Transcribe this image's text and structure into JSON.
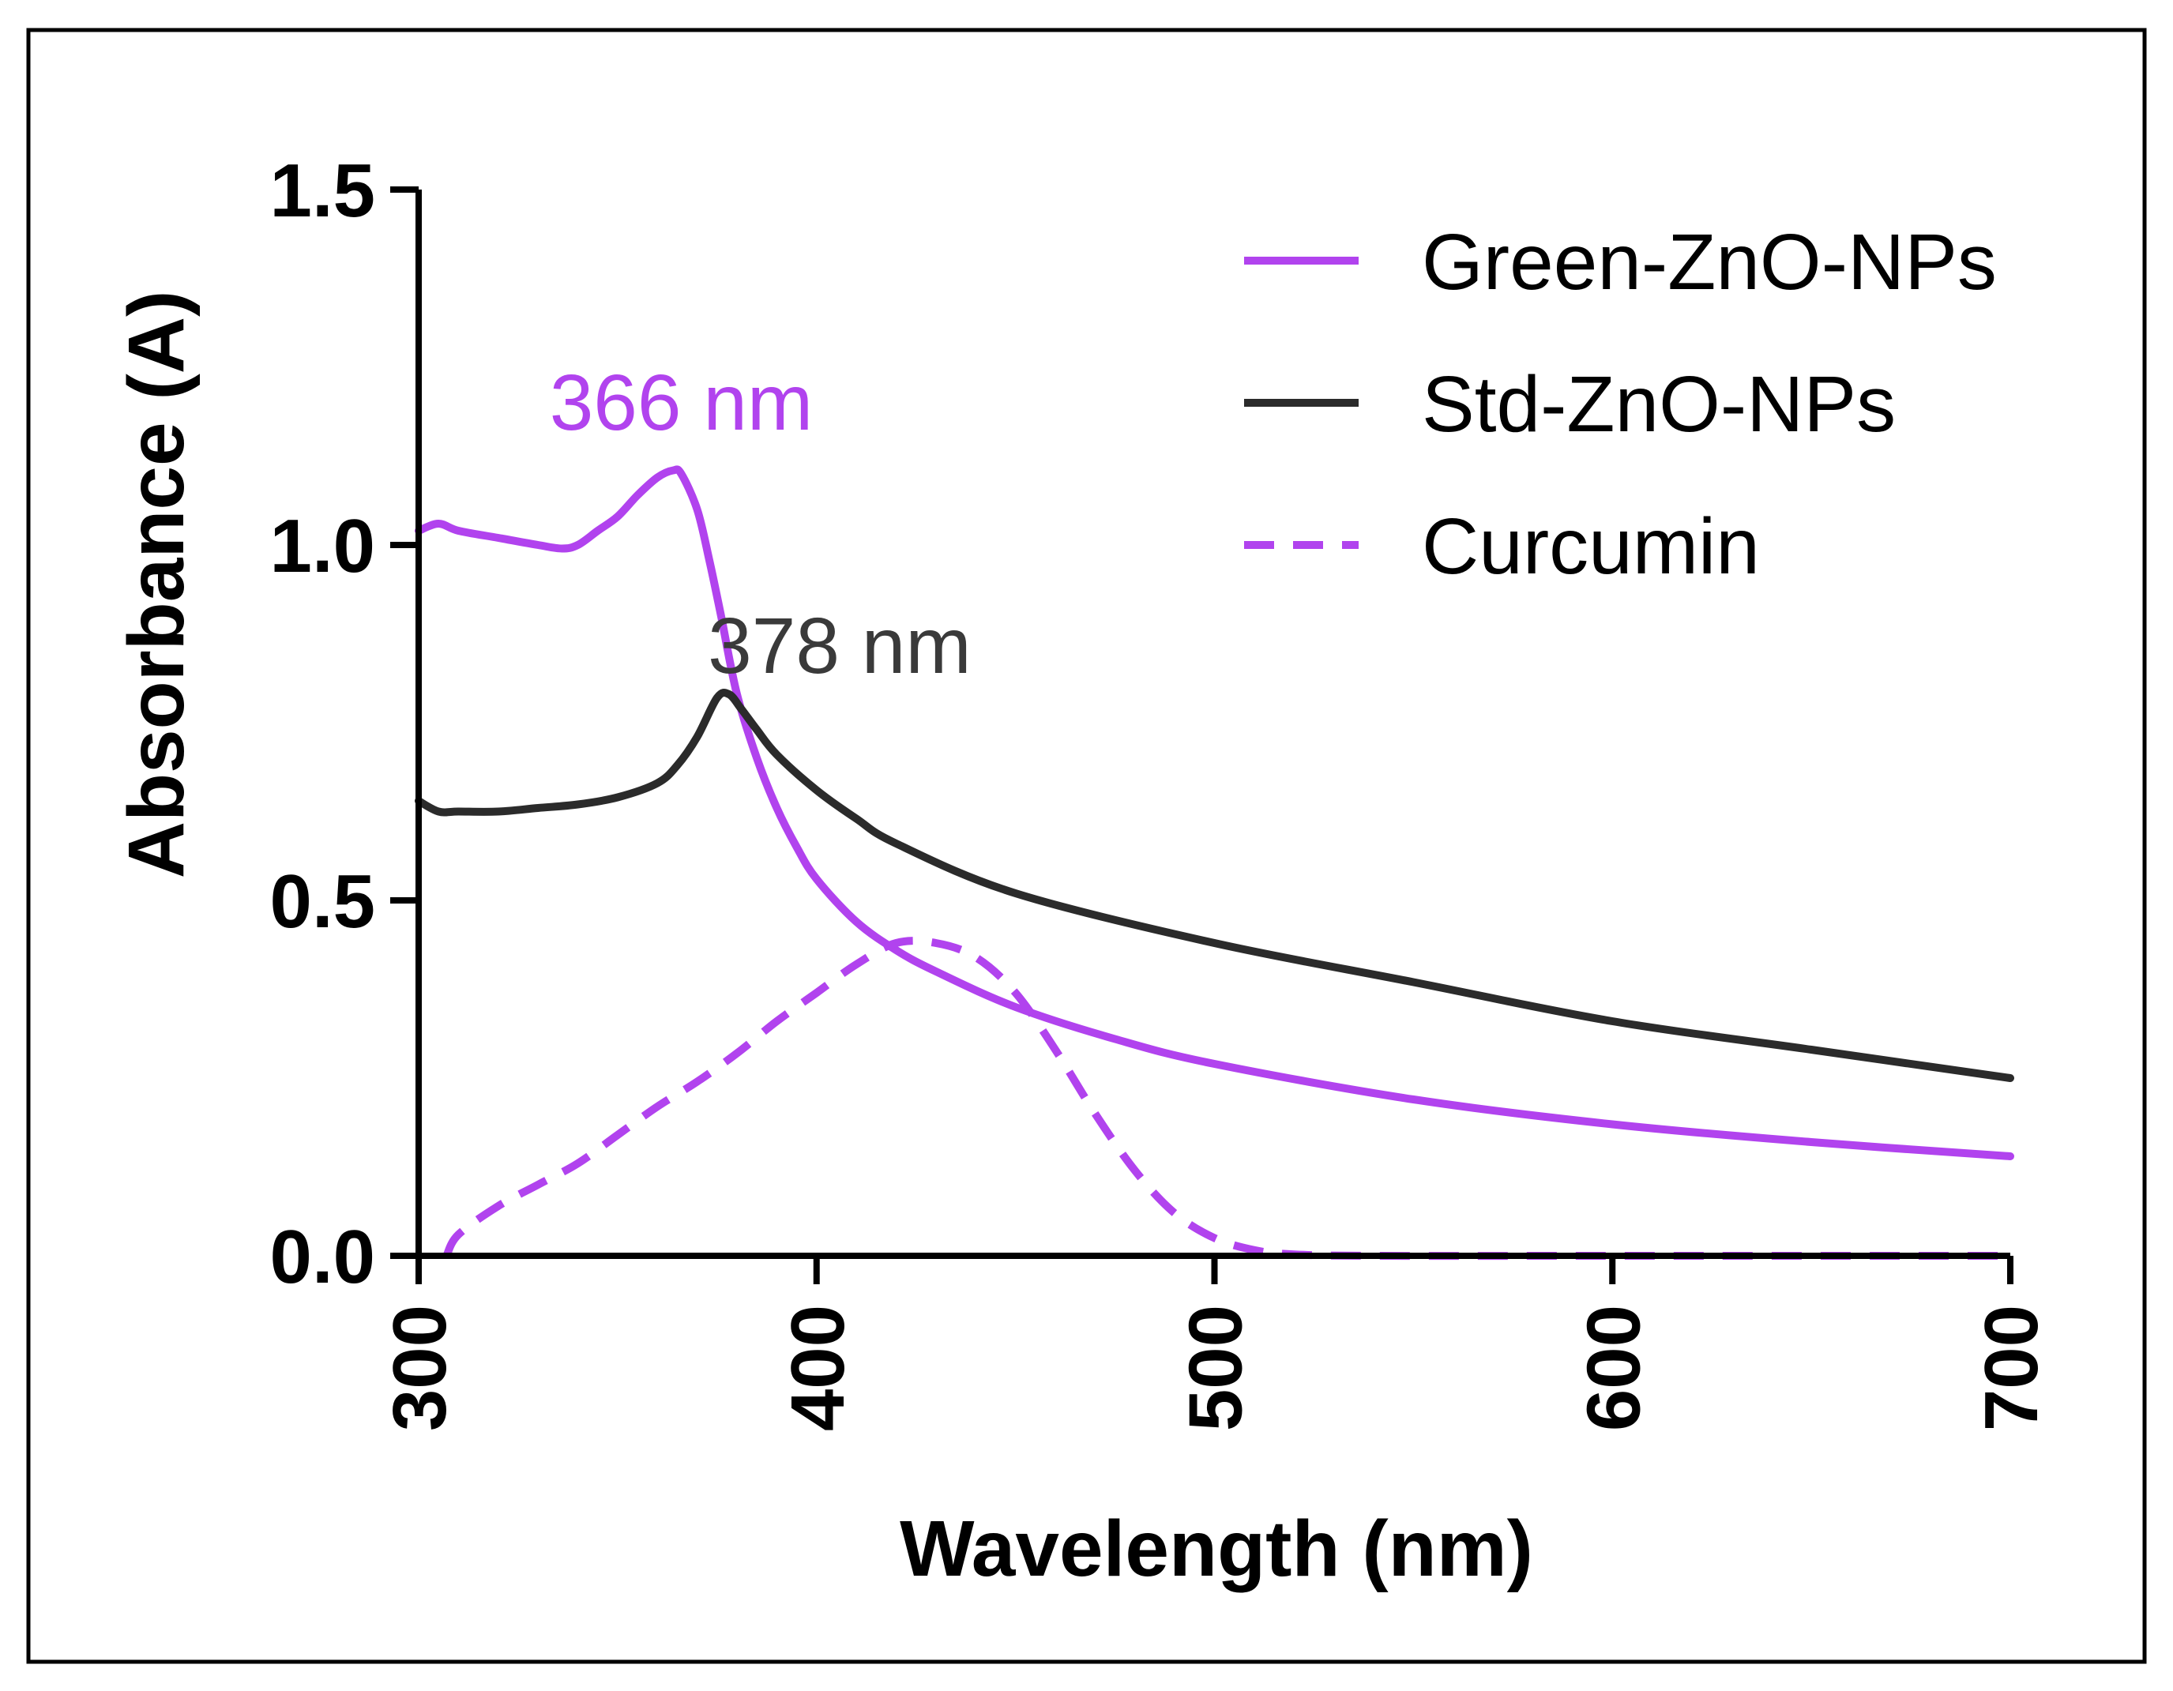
{
  "chart_data": {
    "type": "line",
    "xlabel": "Wavelength (nm)",
    "ylabel": "Absorbance (A)",
    "xlim": [
      300,
      700
    ],
    "ylim": [
      0,
      1.5
    ],
    "xticks": [
      "300",
      "400",
      "500",
      "600",
      "700"
    ],
    "yticks": [
      "0.0",
      "0.5",
      "1.0",
      "1.5"
    ],
    "grid": false,
    "legend_position": "top-right",
    "series": [
      {
        "name": "Green-ZnO-NPs",
        "color": "#b143ee",
        "dash": false,
        "points": [
          [
            300,
            1.02
          ],
          [
            305,
            1.03
          ],
          [
            310,
            1.02
          ],
          [
            320,
            1.01
          ],
          [
            330,
            1.0
          ],
          [
            336,
            0.995
          ],
          [
            340,
            1.0
          ],
          [
            345,
            1.02
          ],
          [
            350,
            1.04
          ],
          [
            355,
            1.07
          ],
          [
            360,
            1.095
          ],
          [
            364,
            1.105
          ],
          [
            366,
            1.1
          ],
          [
            370,
            1.05
          ],
          [
            373,
            0.98
          ],
          [
            376,
            0.9
          ],
          [
            380,
            0.79
          ],
          [
            385,
            0.7
          ],
          [
            390,
            0.63
          ],
          [
            395,
            0.575
          ],
          [
            400,
            0.53
          ],
          [
            410,
            0.47
          ],
          [
            420,
            0.43
          ],
          [
            430,
            0.4
          ],
          [
            450,
            0.35
          ],
          [
            475,
            0.305
          ],
          [
            500,
            0.27
          ],
          [
            550,
            0.22
          ],
          [
            600,
            0.185
          ],
          [
            650,
            0.16
          ],
          [
            700,
            0.14
          ]
        ]
      },
      {
        "name": "Std-ZnO-NPs",
        "color": "#2b2b2b",
        "dash": false,
        "points": [
          [
            300,
            0.64
          ],
          [
            305,
            0.625
          ],
          [
            310,
            0.625
          ],
          [
            320,
            0.625
          ],
          [
            330,
            0.63
          ],
          [
            340,
            0.635
          ],
          [
            350,
            0.645
          ],
          [
            360,
            0.665
          ],
          [
            365,
            0.69
          ],
          [
            370,
            0.73
          ],
          [
            375,
            0.785
          ],
          [
            378,
            0.79
          ],
          [
            381,
            0.77
          ],
          [
            385,
            0.74
          ],
          [
            390,
            0.705
          ],
          [
            400,
            0.655
          ],
          [
            410,
            0.615
          ],
          [
            420,
            0.58
          ],
          [
            450,
            0.51
          ],
          [
            500,
            0.44
          ],
          [
            550,
            0.385
          ],
          [
            600,
            0.33
          ],
          [
            650,
            0.29
          ],
          [
            700,
            0.25
          ]
        ]
      },
      {
        "name": "Curcumin",
        "color": "#b143ee",
        "dash": true,
        "points": [
          [
            307,
            0.0
          ],
          [
            310,
            0.03
          ],
          [
            320,
            0.07
          ],
          [
            330,
            0.1
          ],
          [
            340,
            0.13
          ],
          [
            350,
            0.17
          ],
          [
            360,
            0.21
          ],
          [
            370,
            0.245
          ],
          [
            380,
            0.285
          ],
          [
            390,
            0.33
          ],
          [
            400,
            0.37
          ],
          [
            410,
            0.41
          ],
          [
            420,
            0.44
          ],
          [
            430,
            0.44
          ],
          [
            440,
            0.42
          ],
          [
            450,
            0.37
          ],
          [
            460,
            0.29
          ],
          [
            470,
            0.2
          ],
          [
            480,
            0.12
          ],
          [
            490,
            0.06
          ],
          [
            500,
            0.025
          ],
          [
            510,
            0.008
          ],
          [
            520,
            0.002
          ],
          [
            540,
            0.0
          ],
          [
            600,
            0.0
          ],
          [
            700,
            0.0
          ]
        ]
      }
    ],
    "annotations": [
      {
        "text": "366 nm",
        "color": "#b143ee",
        "x": 366,
        "y": 1.14
      },
      {
        "text": "378 nm",
        "color": "#3a3a3a",
        "x": 378,
        "y": 0.82
      }
    ]
  }
}
